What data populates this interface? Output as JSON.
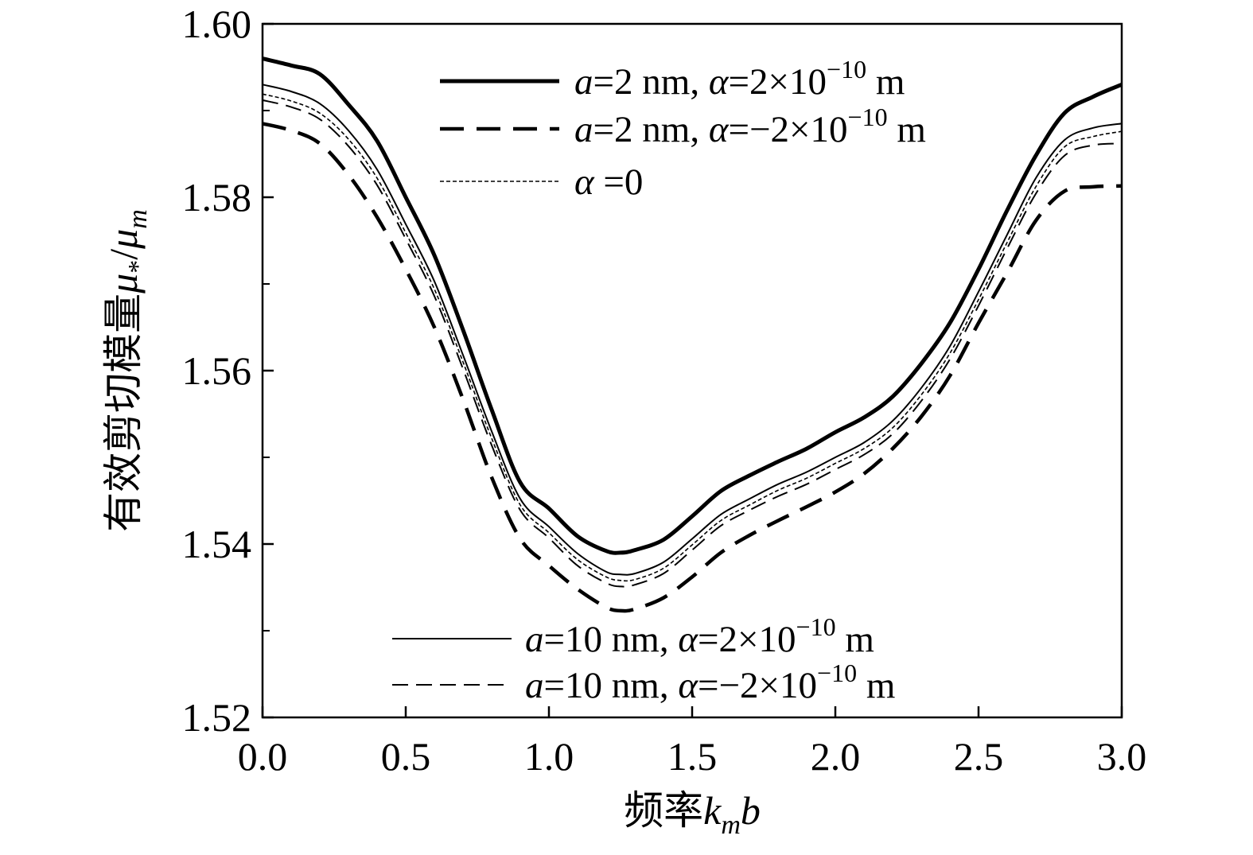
{
  "chart_data": {
    "type": "line",
    "xlabel": "频率k_mb",
    "ylabel": "有效剪切模量μ*/μm",
    "xlim": [
      0.0,
      3.0
    ],
    "ylim": [
      1.52,
      1.6
    ],
    "x_ticks": [
      "0.0",
      "0.5",
      "1.0",
      "1.5",
      "2.0",
      "2.5",
      "3.0"
    ],
    "y_ticks": [
      "1.52",
      "1.54",
      "1.56",
      "1.58",
      "1.60"
    ],
    "y_tick_values": [
      1.52,
      1.54,
      1.56,
      1.58,
      1.6
    ],
    "y_minor_ticks": [
      1.53,
      1.55,
      1.57,
      1.59
    ],
    "grid": false,
    "legend_top_placement": "top-center",
    "legend_bottom_placement": "bottom-center",
    "x": [
      0.0,
      0.1,
      0.2,
      0.3,
      0.4,
      0.5,
      0.6,
      0.7,
      0.8,
      0.9,
      1.0,
      1.1,
      1.2,
      1.25,
      1.3,
      1.4,
      1.5,
      1.6,
      1.7,
      1.8,
      1.9,
      2.0,
      2.1,
      2.2,
      2.3,
      2.4,
      2.5,
      2.6,
      2.7,
      2.8,
      2.9,
      3.0
    ],
    "series": [
      {
        "name": "a=2 nm, α=2×10⁻¹⁰ m",
        "style": "thick-solid",
        "values": [
          1.596,
          1.5952,
          1.5942,
          1.5907,
          1.5865,
          1.58,
          1.5733,
          1.5647,
          1.5555,
          1.5471,
          1.5441,
          1.5409,
          1.5392,
          1.539,
          1.5393,
          1.5405,
          1.5432,
          1.5461,
          1.5479,
          1.5495,
          1.551,
          1.5529,
          1.5546,
          1.557,
          1.5608,
          1.5655,
          1.5717,
          1.5785,
          1.5848,
          1.5897,
          1.5916,
          1.593
        ]
      },
      {
        "name": "a=2 nm, α=−2×10⁻¹⁰ m",
        "style": "thick-dashed",
        "values": [
          1.5885,
          1.5877,
          1.5862,
          1.5826,
          1.5777,
          1.5717,
          1.565,
          1.5567,
          1.5477,
          1.5406,
          1.5375,
          1.5348,
          1.5327,
          1.5323,
          1.5325,
          1.5338,
          1.5362,
          1.539,
          1.541,
          1.5427,
          1.5443,
          1.546,
          1.5481,
          1.551,
          1.5547,
          1.5594,
          1.5655,
          1.5713,
          1.5773,
          1.5807,
          1.5812,
          1.5813
        ]
      },
      {
        "name": "α =0",
        "style": "thin-dotted",
        "values": [
          1.5919,
          1.5911,
          1.5897,
          1.5867,
          1.5822,
          1.5759,
          1.5694,
          1.561,
          1.5522,
          1.5445,
          1.5413,
          1.5382,
          1.5362,
          1.5358,
          1.5359,
          1.5372,
          1.5399,
          1.5427,
          1.5445,
          1.5462,
          1.5476,
          1.5493,
          1.551,
          1.5534,
          1.5572,
          1.562,
          1.5682,
          1.5748,
          1.5812,
          1.5858,
          1.587,
          1.5876
        ]
      },
      {
        "name": "a=10 nm, α=2×10⁻¹⁰ m",
        "style": "thin-solid",
        "values": [
          1.593,
          1.5922,
          1.5908,
          1.5877,
          1.5832,
          1.5769,
          1.5703,
          1.5618,
          1.553,
          1.5452,
          1.542,
          1.5389,
          1.5368,
          1.5365,
          1.5366,
          1.5379,
          1.5406,
          1.5434,
          1.5452,
          1.5469,
          1.5483,
          1.55,
          1.5517,
          1.5542,
          1.558,
          1.5628,
          1.5691,
          1.5757,
          1.5822,
          1.5866,
          1.588,
          1.5885
        ]
      },
      {
        "name": "a=10 nm, α=−2×10⁻¹⁰ m",
        "style": "thin-dashed",
        "values": [
          1.5912,
          1.5904,
          1.589,
          1.5859,
          1.5814,
          1.5752,
          1.5686,
          1.5602,
          1.5514,
          1.5439,
          1.5407,
          1.5375,
          1.5355,
          1.5351,
          1.5353,
          1.5366,
          1.5393,
          1.5421,
          1.5439,
          1.5455,
          1.5469,
          1.5486,
          1.5503,
          1.5527,
          1.5565,
          1.5613,
          1.5675,
          1.5741,
          1.5804,
          1.5848,
          1.586,
          1.5862
        ]
      }
    ]
  },
  "axis_titles": {
    "y_main": "有效剪切模量",
    "y_mu_star": "μ",
    "y_star": "*",
    "y_slash": "/",
    "y_mu_m": "μ",
    "y_m": "m",
    "x_main": "频率",
    "x_k": "k",
    "x_m": "m",
    "x_b": "b"
  },
  "legend": {
    "top": [
      {
        "a": "a",
        "a_val": "=2 nm, ",
        "alpha": "α",
        "alpha_val": "=2×10",
        "exp": "−10",
        "unit": " m"
      },
      {
        "a": "a",
        "a_val": "=2 nm, ",
        "alpha": "α",
        "alpha_val": "=−2×10",
        "exp": "−10",
        "unit": " m"
      },
      {
        "alpha": "α",
        "alpha_val": " =0"
      }
    ],
    "bottom": [
      {
        "a": "a",
        "a_val": "=10 nm, ",
        "alpha": "α",
        "alpha_val": "=2×10",
        "exp": "−10",
        "unit": " m"
      },
      {
        "a": "a",
        "a_val": "=10 nm, ",
        "alpha": "α",
        "alpha_val": "=−2×10",
        "exp": "−10",
        "unit": " m"
      }
    ]
  }
}
